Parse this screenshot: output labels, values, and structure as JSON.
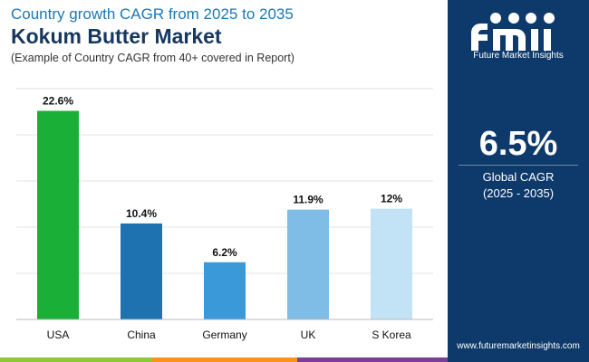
{
  "header": {
    "subtitle": "Country growth CAGR from 2025 to 2035",
    "title": "Kokum Butter Market",
    "note": "(Example of Country CAGR from 40+ covered in Report)"
  },
  "sidebar": {
    "logo_text": "fmi",
    "logo_caption": "Future Market Insights",
    "global_value": "6.5%",
    "global_label": "Global CAGR",
    "global_period": "(2025 - 2035)",
    "website": "www.futuremarketinsights.com"
  },
  "colors": {
    "sidebar_bg": "#0e3a6b",
    "title_blue": "#1b78b5",
    "title_navy": "#17375e",
    "stripe": [
      "#8dc63f",
      "#f7941d",
      "#7b3f98",
      "#0e3a6b"
    ]
  },
  "chart_data": {
    "type": "bar",
    "categories": [
      "USA",
      "China",
      "Germany",
      "UK",
      "S Korea"
    ],
    "values": [
      22.6,
      10.4,
      6.2,
      11.9,
      12
    ],
    "labels": [
      "22.6%",
      "10.4%",
      "6.2%",
      "11.9%",
      "12%"
    ],
    "colors": [
      "#1aaf37",
      "#1f72b0",
      "#3a9ad9",
      "#7fbde6",
      "#c2e2f5"
    ],
    "ylim": [
      0,
      25
    ],
    "grid": true
  }
}
